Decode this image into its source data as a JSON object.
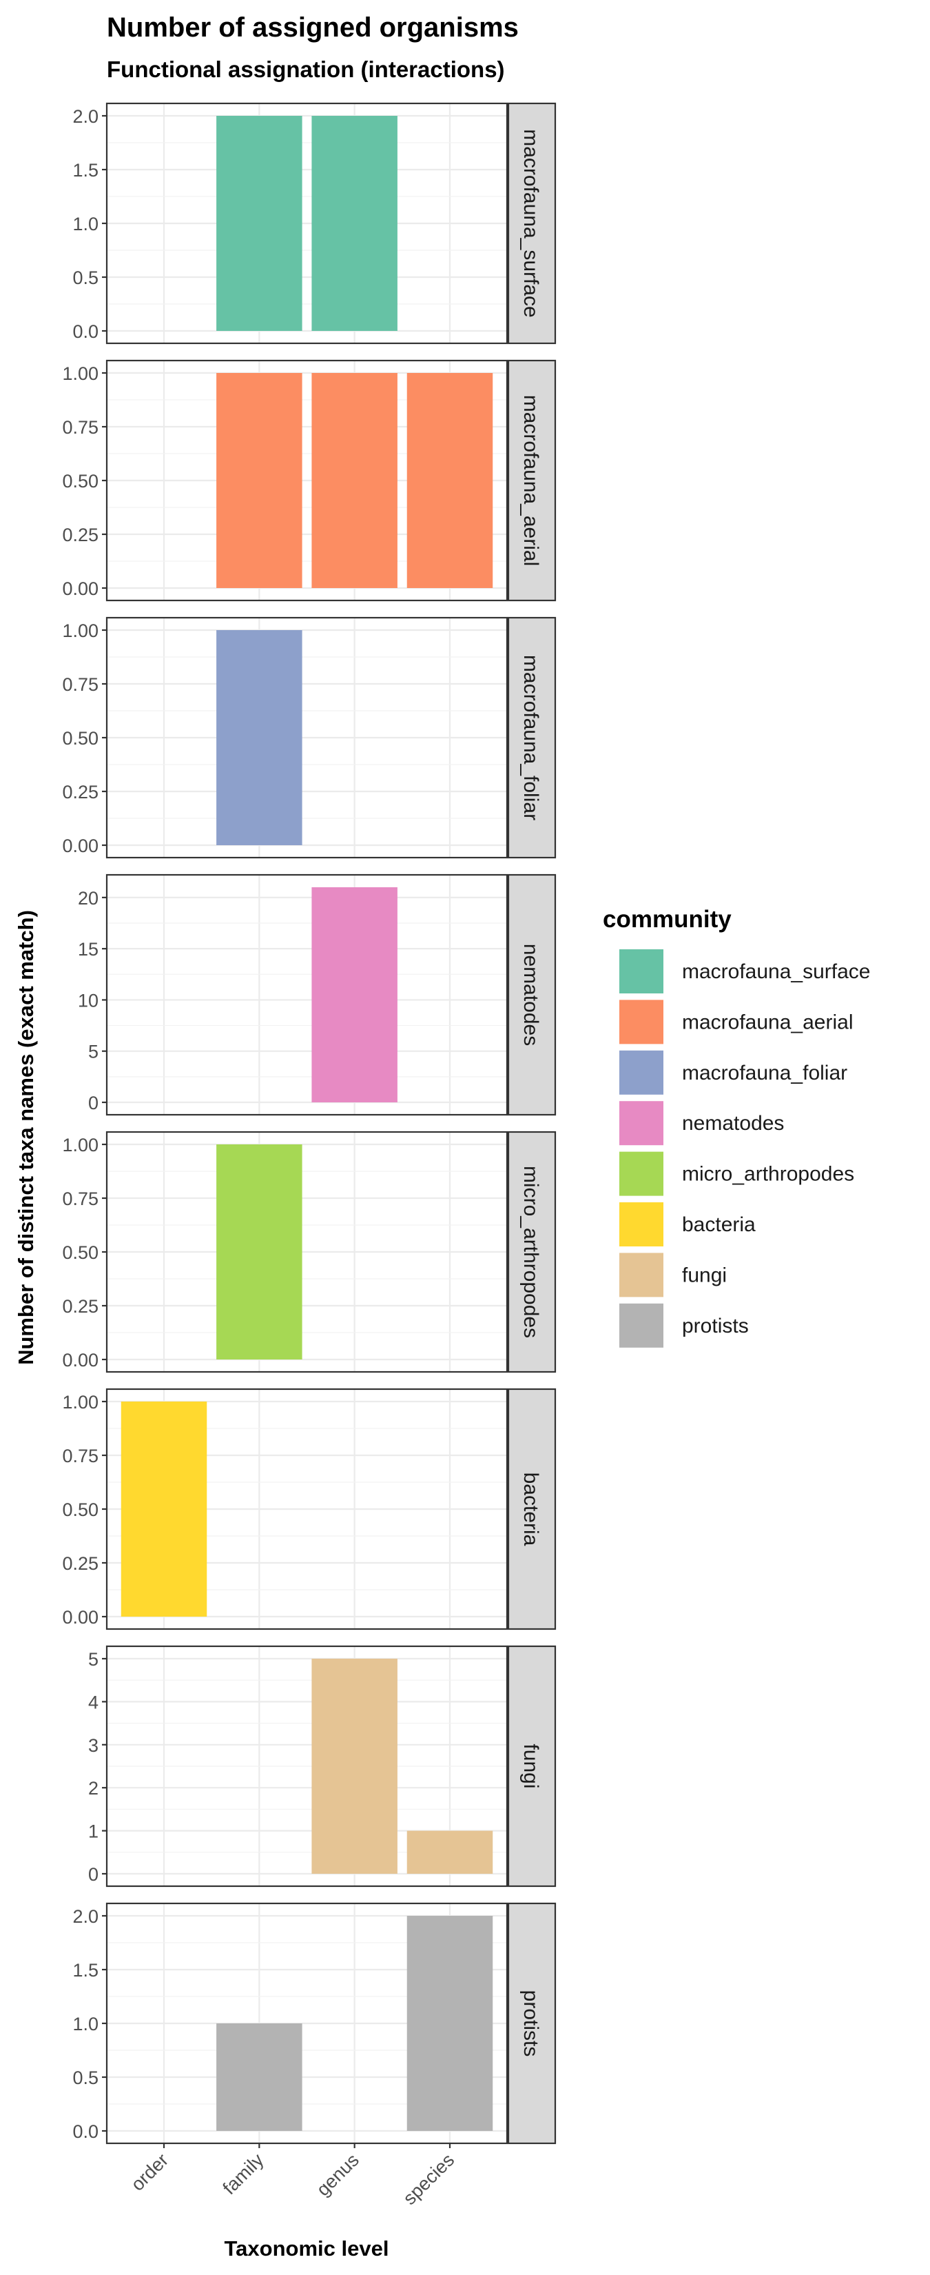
{
  "chart_data": {
    "type": "bar",
    "title": "Number of assigned organisms",
    "subtitle": "Functional assignation (interactions)",
    "xlabel": "Taxonomic level",
    "ylabel": "Number of distinct taxa names (exact match)",
    "categories": [
      "order",
      "family",
      "genus",
      "species"
    ],
    "grid": true,
    "legend": {
      "title": "community",
      "placement": "right",
      "entries": [
        {
          "name": "macrofauna_surface",
          "color": "#66c2a5"
        },
        {
          "name": "macrofauna_aerial",
          "color": "#fc8d62"
        },
        {
          "name": "macrofauna_foliar",
          "color": "#8da0cb"
        },
        {
          "name": "nematodes",
          "color": "#e78ac3"
        },
        {
          "name": "micro_arthropodes",
          "color": "#a6d854"
        },
        {
          "name": "bacteria",
          "color": "#ffd92f"
        },
        {
          "name": "fungi",
          "color": "#e5c494"
        },
        {
          "name": "protists",
          "color": "#b3b3b3"
        }
      ]
    },
    "series": [
      {
        "name": "macrofauna_surface",
        "color": "#66c2a5",
        "values": [
          null,
          2,
          2,
          null
        ],
        "ylim": [
          0,
          2
        ],
        "ticks": [
          "0.0",
          "0.5",
          "1.0",
          "1.5",
          "2.0"
        ]
      },
      {
        "name": "macrofauna_aerial",
        "color": "#fc8d62",
        "values": [
          null,
          1,
          1,
          1
        ],
        "ylim": [
          0,
          1
        ],
        "ticks": [
          "0.00",
          "0.25",
          "0.50",
          "0.75",
          "1.00"
        ]
      },
      {
        "name": "macrofauna_foliar",
        "color": "#8da0cb",
        "values": [
          null,
          1,
          null,
          null
        ],
        "ylim": [
          0,
          1
        ],
        "ticks": [
          "0.00",
          "0.25",
          "0.50",
          "0.75",
          "1.00"
        ]
      },
      {
        "name": "nematodes",
        "color": "#e78ac3",
        "values": [
          null,
          null,
          21,
          null
        ],
        "ylim": [
          0,
          21
        ],
        "ticks": [
          "0",
          "5",
          "10",
          "15",
          "20"
        ]
      },
      {
        "name": "micro_arthropodes",
        "color": "#a6d854",
        "values": [
          null,
          1,
          null,
          null
        ],
        "ylim": [
          0,
          1
        ],
        "ticks": [
          "0.00",
          "0.25",
          "0.50",
          "0.75",
          "1.00"
        ]
      },
      {
        "name": "bacteria",
        "color": "#ffd92f",
        "values": [
          1,
          null,
          null,
          null
        ],
        "ylim": [
          0,
          1
        ],
        "ticks": [
          "0.00",
          "0.25",
          "0.50",
          "0.75",
          "1.00"
        ]
      },
      {
        "name": "fungi",
        "color": "#e5c494",
        "values": [
          null,
          null,
          5,
          1
        ],
        "ylim": [
          0,
          5
        ],
        "ticks": [
          "0",
          "1",
          "2",
          "3",
          "4",
          "5"
        ]
      },
      {
        "name": "protists",
        "color": "#b3b3b3",
        "values": [
          null,
          1,
          null,
          2
        ],
        "ylim": [
          0,
          2
        ],
        "ticks": [
          "0.0",
          "0.5",
          "1.0",
          "1.5",
          "2.0"
        ]
      }
    ]
  }
}
